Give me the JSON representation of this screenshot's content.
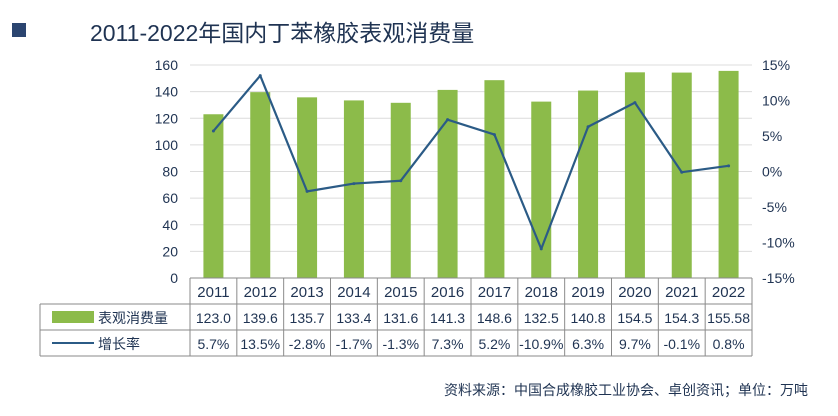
{
  "header": {
    "title": "2011-2022年国内丁苯橡胶表观消费量"
  },
  "footer": {
    "source": "资料来源：中国合成橡胶工业协会、卓创资讯；单位：万吨"
  },
  "colors": {
    "bar": "#8cbb4a",
    "line": "#2b5b86",
    "axis_text": "#1f3352",
    "table_border": "#8a8a8a",
    "title_square": "#2b4570"
  },
  "chart_data": {
    "type": "bar",
    "categories": [
      "2011",
      "2012",
      "2013",
      "2014",
      "2015",
      "2016",
      "2017",
      "2018",
      "2019",
      "2020",
      "2021",
      "2022"
    ],
    "series": [
      {
        "name": "表观消费量",
        "type": "bar",
        "axis": "left",
        "values": [
          123.0,
          139.6,
          135.7,
          133.4,
          131.6,
          141.3,
          148.6,
          132.5,
          140.8,
          154.5,
          154.3,
          155.58
        ],
        "labels": [
          "123.0",
          "139.6",
          "135.7",
          "133.4",
          "131.6",
          "141.3",
          "148.6",
          "132.5",
          "140.8",
          "154.5",
          "154.3",
          "155.58"
        ]
      },
      {
        "name": "增长率",
        "type": "line",
        "axis": "right",
        "values": [
          5.7,
          13.5,
          -2.8,
          -1.7,
          -1.3,
          7.3,
          5.2,
          -10.9,
          6.3,
          9.7,
          -0.1,
          0.8
        ],
        "labels": [
          "5.7%",
          "13.5%",
          "-2.8%",
          "-1.7%",
          "-1.3%",
          "7.3%",
          "5.2%",
          "-10.9%",
          "6.3%",
          "9.7%",
          "-0.1%",
          "0.8%"
        ]
      }
    ],
    "y_left": {
      "range": [
        0,
        160
      ],
      "ticks": [
        "0",
        "20",
        "40",
        "60",
        "80",
        "100",
        "120",
        "140",
        "160"
      ]
    },
    "y_right": {
      "range": [
        -15,
        15
      ],
      "ticks": [
        "-15%",
        "-10%",
        "-5%",
        "0%",
        "5%",
        "10%",
        "15%"
      ]
    },
    "grid": true,
    "legend": "data-table"
  }
}
